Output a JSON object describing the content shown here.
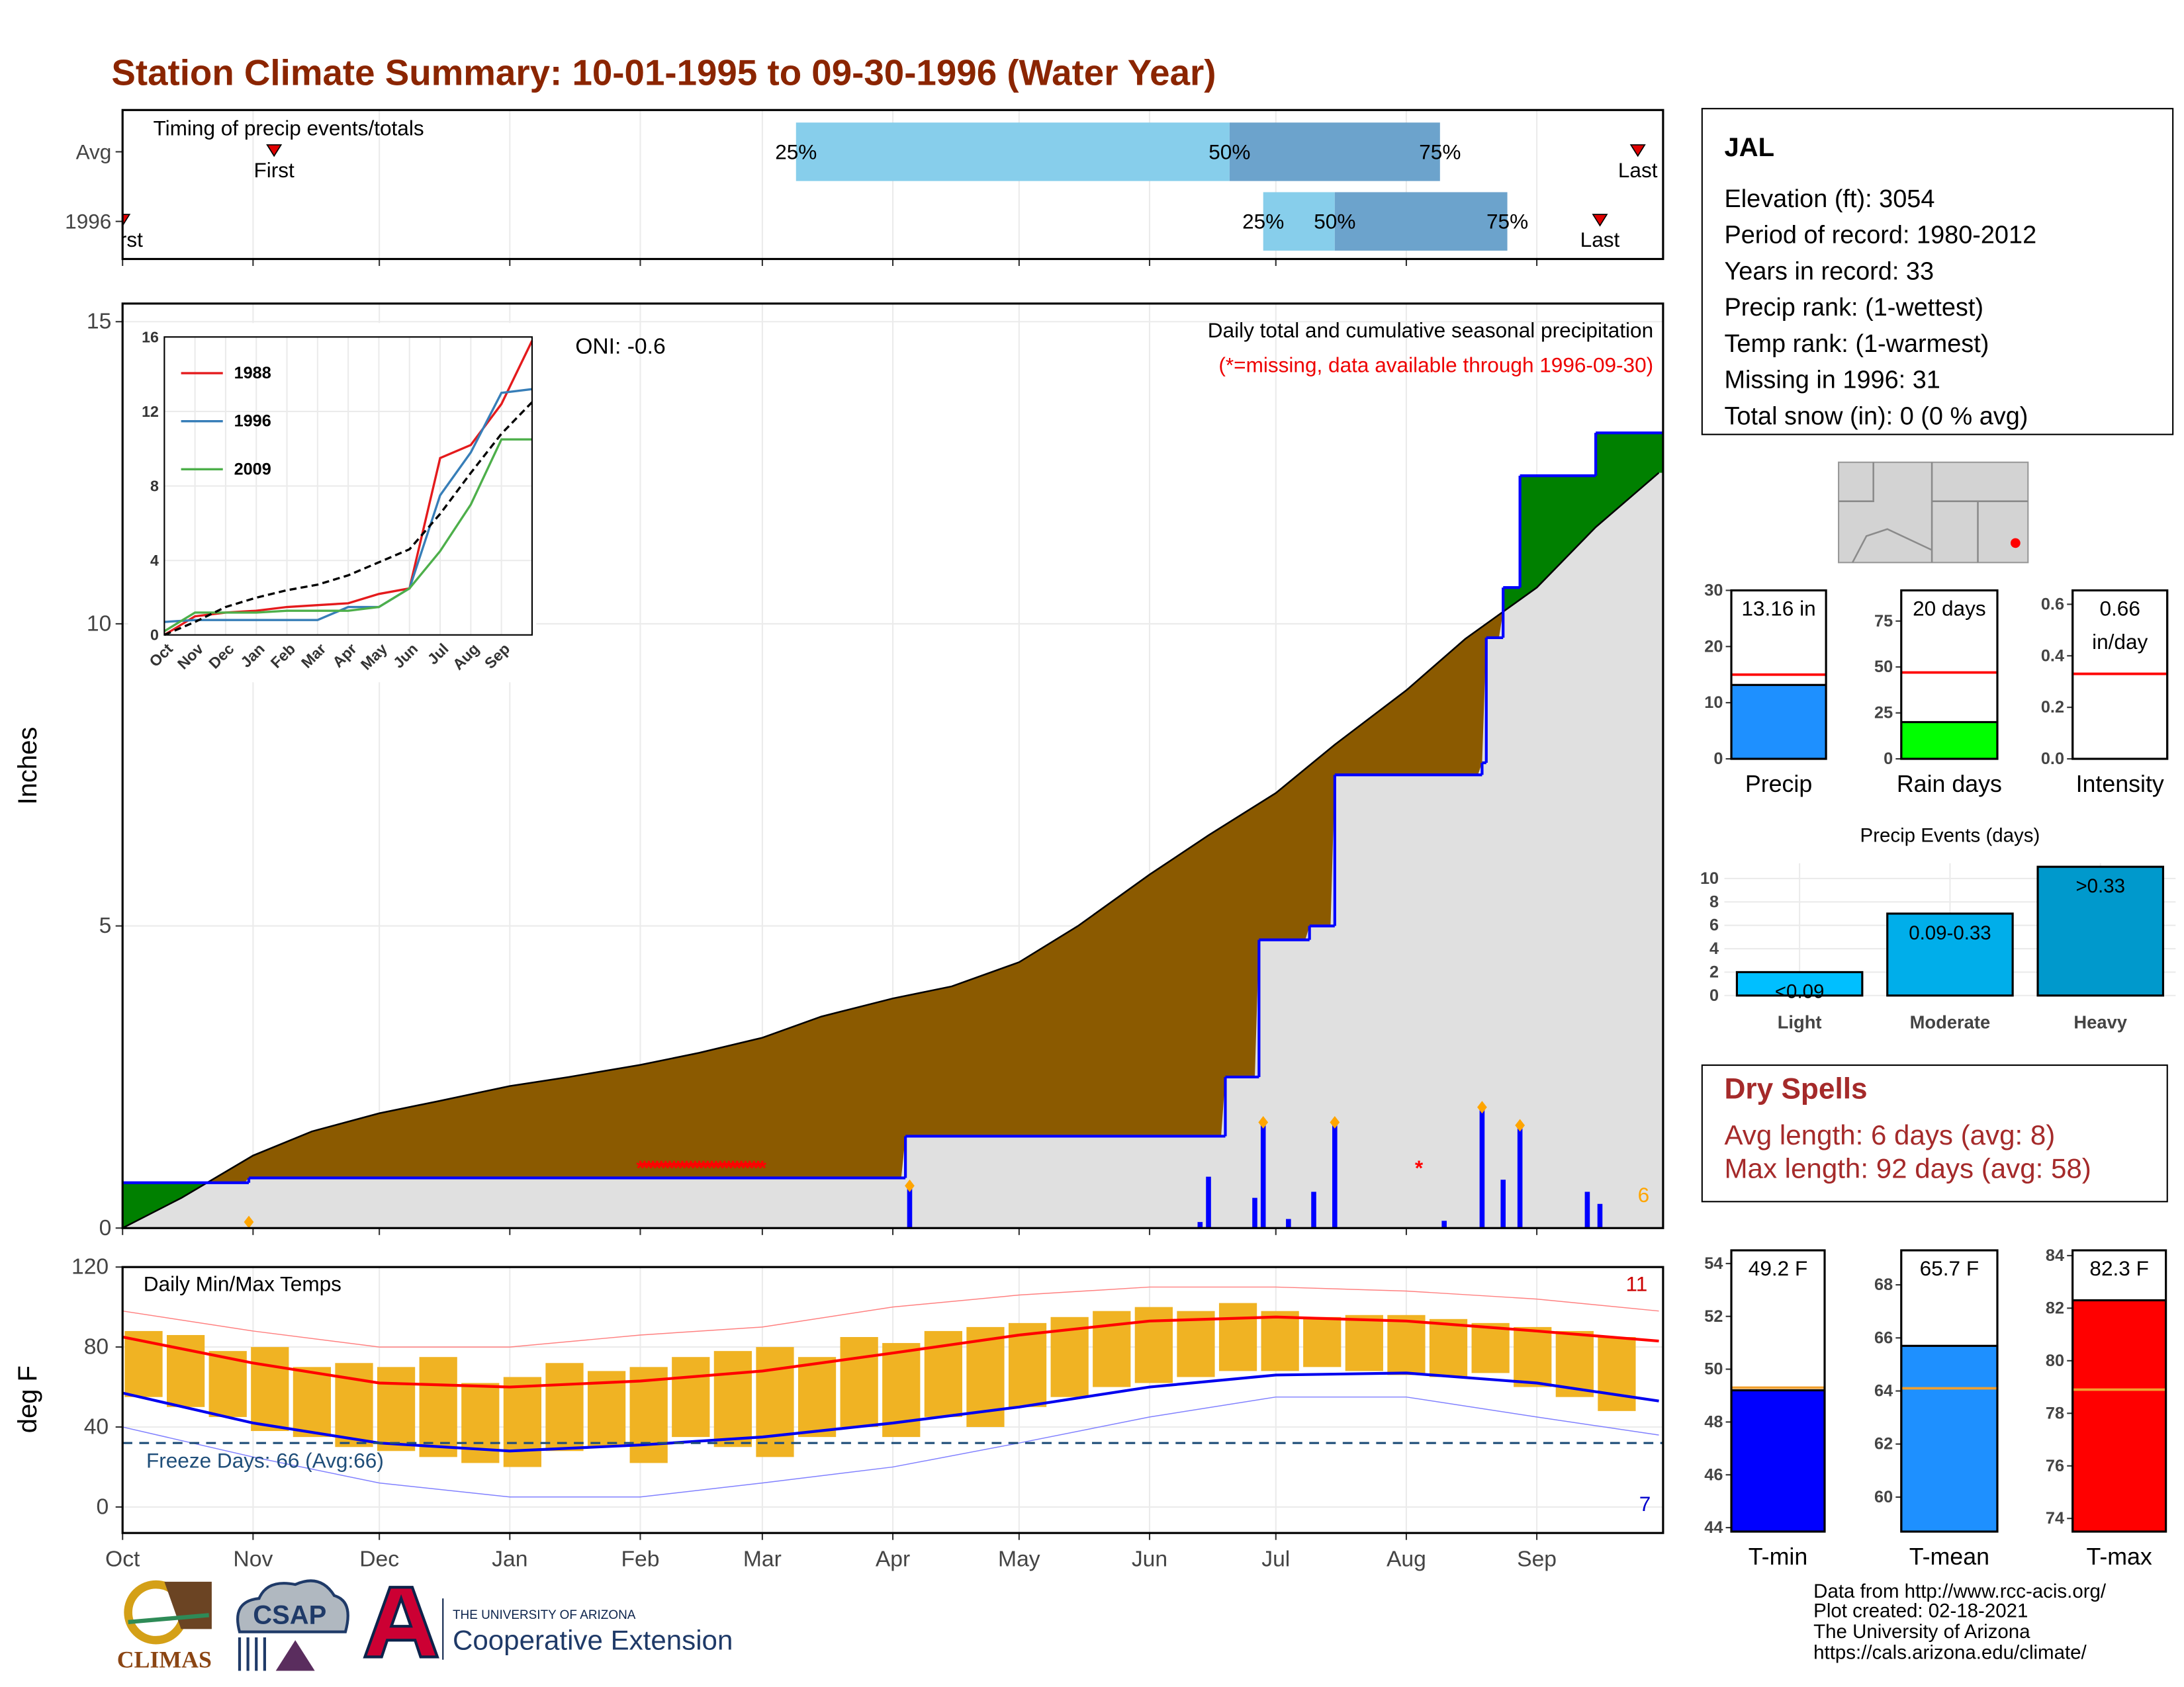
{
  "title": "Station Climate Summary: 10-01-1995 to 09-30-1996 (Water Year)",
  "x_axis": {
    "xlim": [
      0,
      366
    ],
    "xticks": [
      {
        "value": 0,
        "label": "Oct"
      },
      {
        "value": 31,
        "label": "Nov"
      },
      {
        "value": 61,
        "label": "Dec"
      },
      {
        "value": 92,
        "label": "Jan"
      },
      {
        "value": 123,
        "label": "Feb"
      },
      {
        "value": 152,
        "label": "Mar"
      },
      {
        "value": 183,
        "label": "Apr"
      },
      {
        "value": 213,
        "label": "May"
      },
      {
        "value": 244,
        "label": "Jun"
      },
      {
        "value": 274,
        "label": "Jul"
      },
      {
        "value": 305,
        "label": "Aug"
      },
      {
        "value": 336,
        "label": "Sep"
      }
    ]
  },
  "chart_data": [
    {
      "type": "timing",
      "subtitle": "Timing of precip events/totals",
      "categories": [
        "Avg",
        "1996"
      ],
      "colors": [
        "#87ceeb",
        "#6ca3cc"
      ],
      "marker_color": "#e00000",
      "first_label": "First",
      "last_label": "Last",
      "rows": [
        {
          "start": 160,
          "mid": 263,
          "end": 313,
          "labels": [
            "25%",
            "50%",
            "75%"
          ],
          "first": 36,
          "last": 360
        },
        {
          "start": 271,
          "mid": 288,
          "end": 329,
          "labels": [
            "25%",
            "50%",
            "75%"
          ],
          "first": 0,
          "last": 351
        }
      ]
    },
    {
      "type": "cumulative",
      "ylabel": "Inches",
      "ylim": [
        0,
        15.3
      ],
      "yticks": [
        0,
        5,
        10,
        15
      ],
      "oni": "ONI: -0.6",
      "caption": "Daily total and cumulative seasonal precipitation",
      "note": "(*=missing, data available through 1996-09-30)",
      "event_count": 6,
      "base_fill": "#e0e0e0",
      "avg": {
        "color": "#8b5a00",
        "x": [
          0,
          14,
          31,
          45,
          61,
          75,
          92,
          106,
          123,
          137,
          152,
          166,
          183,
          197,
          213,
          227,
          244,
          258,
          274,
          288,
          305,
          319,
          336,
          350,
          365
        ],
        "values": [
          0,
          0.5,
          1.2,
          1.6,
          1.9,
          2.1,
          2.35,
          2.5,
          2.7,
          2.9,
          3.15,
          3.5,
          3.8,
          4.0,
          4.4,
          5.0,
          5.85,
          6.5,
          7.2,
          8.0,
          8.9,
          9.75,
          10.6,
          11.6,
          12.5
        ]
      },
      "current": {
        "color": "#0000ff",
        "fill": "#008000",
        "x": [
          0,
          30,
          186,
          262,
          270,
          282,
          288,
          323,
          324,
          328,
          332,
          350
        ],
        "values": [
          0.75,
          0.83,
          1.52,
          2.5,
          4.77,
          5.0,
          7.5,
          7.7,
          9.77,
          10.6,
          12.45,
          13.16
        ]
      },
      "daily": {
        "color": "#0000ff",
        "x": [
          187,
          256,
          258,
          269,
          271,
          277,
          283,
          288,
          314,
          323,
          328,
          332,
          348,
          351
        ],
        "values": [
          0.7,
          0.1,
          0.85,
          0.5,
          1.75,
          0.15,
          0.6,
          1.75,
          0.12,
          2.0,
          0.8,
          1.7,
          0.6,
          0.4
        ]
      },
      "markers": {
        "color": "#ffa500",
        "x": [
          30,
          187,
          271,
          288,
          323,
          332
        ],
        "values": [
          0.1,
          0.7,
          1.75,
          1.75,
          2.0,
          1.7
        ]
      },
      "missing": {
        "color": "#ff0000",
        "y": 1,
        "x": [
          123,
          124,
          125,
          126,
          127,
          128,
          129,
          130,
          131,
          132,
          133,
          134,
          135,
          136,
          137,
          138,
          139,
          140,
          141,
          142,
          143,
          144,
          145,
          146,
          147,
          148,
          149,
          150,
          151,
          152,
          308
        ]
      }
    },
    {
      "type": "line",
      "xlim": [
        0,
        12
      ],
      "ylim": [
        0,
        16
      ],
      "yticks": [
        0,
        4,
        8,
        12,
        16
      ],
      "xticks": [
        {
          "value": 0,
          "label": "Oct"
        },
        {
          "value": 1,
          "label": "Nov"
        },
        {
          "value": 2,
          "label": "Dec"
        },
        {
          "value": 3,
          "label": "Jan"
        },
        {
          "value": 4,
          "label": "Feb"
        },
        {
          "value": 5,
          "label": "Mar"
        },
        {
          "value": 6,
          "label": "Apr"
        },
        {
          "value": 7,
          "label": "May"
        },
        {
          "value": 8,
          "label": "Jun"
        },
        {
          "value": 9,
          "label": "Jul"
        },
        {
          "value": 10,
          "label": "Aug"
        },
        {
          "value": 11,
          "label": "Sep"
        }
      ],
      "x": [
        0,
        1,
        2,
        3,
        4,
        5,
        6,
        7,
        8,
        9,
        10,
        11,
        12
      ],
      "series": [
        {
          "name": "1988",
          "color": "#e41a1c",
          "values": [
            0,
            1.0,
            1.2,
            1.3,
            1.5,
            1.6,
            1.7,
            2.2,
            2.5,
            9.5,
            10.2,
            12.4,
            15.8
          ]
        },
        {
          "name": "1996",
          "color": "#377eb8",
          "values": [
            0.7,
            0.8,
            0.8,
            0.8,
            0.8,
            0.8,
            1.5,
            1.5,
            2.5,
            7.5,
            9.8,
            13.0,
            13.2
          ]
        },
        {
          "name": "2009",
          "color": "#4daf4a",
          "values": [
            0.2,
            1.2,
            1.2,
            1.2,
            1.3,
            1.3,
            1.3,
            1.5,
            2.5,
            4.5,
            7.0,
            10.5,
            10.5
          ]
        },
        {
          "color": "#000000",
          "dash": true,
          "values": [
            0,
            0.7,
            1.5,
            2.0,
            2.4,
            2.7,
            3.2,
            3.9,
            4.6,
            6.5,
            8.7,
            10.8,
            12.5
          ]
        }
      ]
    },
    {
      "type": "temps",
      "subtitle": "Daily Min/Max Temps",
      "ylabel": "deg F",
      "ylim": [
        -13,
        120
      ],
      "yticks": [
        0,
        40,
        80,
        120
      ],
      "freeze_line": 32,
      "freeze_label": "Freeze Days: 66 (Avg:66)",
      "record_high_count": 11,
      "record_low_count": 7,
      "daily": {
        "color": "#f0b323",
        "x": [
          5,
          15,
          25,
          35,
          45,
          55,
          65,
          75,
          85,
          95,
          105,
          115,
          125,
          135,
          145,
          155,
          165,
          175,
          185,
          195,
          205,
          215,
          225,
          235,
          245,
          255,
          265,
          275,
          285,
          295,
          305,
          315,
          325,
          335,
          345,
          355
        ],
        "low": [
          55,
          50,
          45,
          38,
          35,
          30,
          28,
          25,
          22,
          20,
          28,
          30,
          22,
          35,
          30,
          25,
          35,
          40,
          35,
          45,
          40,
          50,
          55,
          60,
          62,
          65,
          68,
          68,
          70,
          68,
          66,
          65,
          67,
          60,
          55,
          48
        ],
        "high": [
          88,
          86,
          78,
          80,
          70,
          72,
          70,
          75,
          62,
          65,
          72,
          68,
          70,
          75,
          78,
          80,
          75,
          85,
          82,
          88,
          90,
          92,
          95,
          98,
          100,
          98,
          102,
          98,
          95,
          96,
          96,
          94,
          92,
          90,
          88,
          85
        ]
      },
      "line_x": [
        0,
        31,
        61,
        92,
        123,
        152,
        183,
        213,
        244,
        274,
        305,
        336,
        365
      ],
      "lines": [
        {
          "color": "#ff8080",
          "width": 0.7,
          "values": [
            98,
            88,
            80,
            80,
            86,
            90,
            100,
            106,
            110,
            110,
            108,
            104,
            98
          ]
        },
        {
          "color": "#8080ff",
          "width": 0.7,
          "values": [
            40,
            25,
            12,
            5,
            5,
            12,
            20,
            32,
            45,
            55,
            55,
            45,
            36
          ]
        },
        {
          "color": "#ff0000",
          "width": 2,
          "values": [
            85,
            72,
            62,
            60,
            63,
            68,
            77,
            86,
            93,
            95,
            93,
            88,
            83
          ]
        },
        {
          "color": "#0000ee",
          "width": 2,
          "values": [
            57,
            42,
            32,
            28,
            31,
            35,
            42,
            50,
            60,
            66,
            67,
            62,
            53
          ]
        }
      ]
    },
    {
      "type": "bar",
      "category": "Precip",
      "value": 13.16,
      "value_label": "13.16 in",
      "avg": 15,
      "avg_color": "#ff0000",
      "color": "#1e90ff",
      "ylim": [
        0,
        30
      ],
      "yticks": [
        0,
        10,
        20,
        30
      ]
    },
    {
      "type": "bar",
      "category": "Rain days",
      "value": 20,
      "value_label": "20 days",
      "avg": 47,
      "avg_color": "#ff0000",
      "color": "#00ff00",
      "ylim": [
        0,
        91.7
      ],
      "yticks": [
        0,
        25,
        50,
        75
      ]
    },
    {
      "type": "bar",
      "category": "Intensity",
      "value": 0.66,
      "value_label": "0.66 in/day",
      "avg": 0.33,
      "avg_color": "#ff0000",
      "color": "#ffffff",
      "ylim": [
        0,
        0.654
      ],
      "yticks": [
        {
          "value": 0,
          "label": "0.0"
        },
        0.2,
        0.4,
        0.6
      ]
    },
    {
      "type": "events",
      "title": "Precip Events (days)",
      "categories": [
        "Light",
        "Moderate",
        "Heavy"
      ],
      "values": [
        2,
        7,
        11
      ],
      "value_labels": [
        "<0.09",
        "0.09-0.33",
        ">0.33"
      ],
      "colors": [
        "#00bfff",
        "#00aeea",
        "#0099cc"
      ],
      "ylim": [
        0,
        11.3
      ],
      "yticks": [
        0,
        2,
        4,
        6,
        8,
        10
      ]
    },
    {
      "type": "bar",
      "category": "T-min",
      "value": 49.2,
      "value_label": "49.2 F",
      "avg": 49.3,
      "avg_color": "#f0a030",
      "color": "#0000ff",
      "ylim": [
        43.85,
        54.5
      ],
      "yticks": [
        44,
        46,
        48,
        50,
        52,
        54
      ]
    },
    {
      "type": "bar",
      "category": "T-mean",
      "value": 65.7,
      "value_label": "65.7 F",
      "avg": 64.1,
      "avg_color": "#f0a030",
      "color": "#1e90ff",
      "ylim": [
        58.7,
        69.3
      ],
      "yticks": [
        60,
        62,
        64,
        66,
        68
      ]
    },
    {
      "type": "bar",
      "category": "T-max",
      "value": 82.3,
      "value_label": "82.3 F",
      "avg": 78.9,
      "avg_color": "#f0a030",
      "color": "#ff0000",
      "ylim": [
        73.5,
        84.2
      ],
      "yticks": [
        74,
        76,
        78,
        80,
        82,
        84
      ]
    }
  ],
  "info": {
    "station": "JAL",
    "lines": [
      "Elevation (ft): 3054",
      "Period of record: 1980-2012",
      "Years in record: 33",
      "Precip rank:  (1-wettest)",
      "Temp rank:  (1-warmest)",
      "Missing in 1996: 31",
      "Total snow (in): 0 (0 % avg)"
    ]
  },
  "dry_spells": {
    "title": "Dry Spells",
    "lines": [
      "Avg length: 6 days (avg: 8)",
      "Max length: 92 days (avg: 58)"
    ]
  },
  "footer": {
    "credits": [
      "Data from http://www.rcc-acis.org/",
      "Plot created: 02-18-2021",
      "The University of Arizona",
      "https://cals.arizona.edu/climate/"
    ],
    "logos": [
      "CLIMAS",
      "CSAP",
      "THE UNIVERSITY OF ARIZONA",
      "Cooperative Extension"
    ]
  }
}
